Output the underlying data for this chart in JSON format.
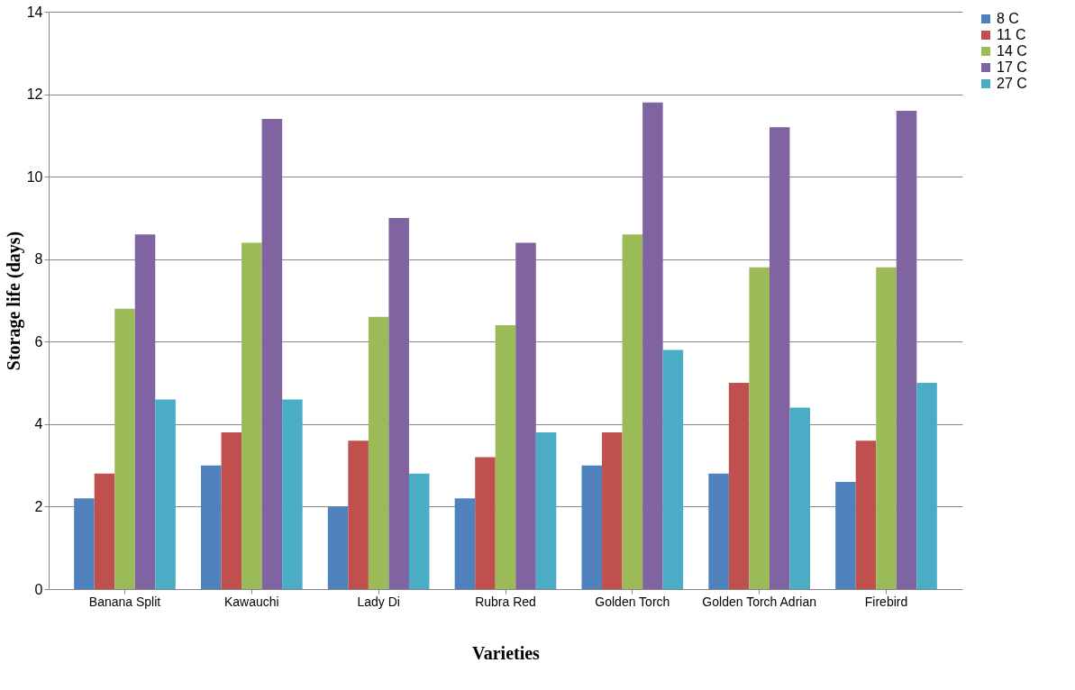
{
  "chart_data": {
    "type": "bar",
    "xlabel": "Varieties",
    "ylabel": "Storage life (days)",
    "categories": [
      "Banana Split",
      "Kawauchi",
      "Lady Di",
      "Rubra Red",
      "Golden Torch",
      "Golden Torch Adrian",
      "Firebird"
    ],
    "series": [
      {
        "name": "8  C",
        "color": "#4f81bd",
        "values": [
          2.2,
          3.0,
          2.0,
          2.2,
          3.0,
          2.8,
          2.6
        ]
      },
      {
        "name": "11  C",
        "color": "#c0504d",
        "values": [
          2.8,
          3.8,
          3.6,
          3.2,
          3.8,
          5.0,
          3.6
        ]
      },
      {
        "name": "14  C",
        "color": "#9bbb59",
        "values": [
          6.8,
          8.4,
          6.6,
          6.4,
          8.6,
          7.8,
          7.8
        ]
      },
      {
        "name": "17  C",
        "color": "#8064a2",
        "values": [
          8.6,
          11.4,
          9.0,
          8.4,
          11.8,
          11.2,
          11.6
        ]
      },
      {
        "name": "27  C",
        "color": "#4bacc6",
        "values": [
          4.6,
          4.6,
          2.8,
          3.8,
          5.8,
          4.4,
          5.0
        ]
      }
    ],
    "ylim": [
      0,
      14
    ],
    "yticks": [
      0,
      2,
      4,
      6,
      8,
      10,
      12,
      14
    ],
    "grid": "y",
    "legend": "right"
  }
}
